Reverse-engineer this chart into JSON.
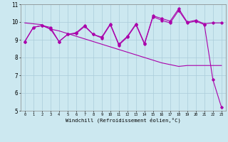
{
  "x": [
    0,
    1,
    2,
    3,
    4,
    5,
    6,
    7,
    8,
    9,
    10,
    11,
    12,
    13,
    14,
    15,
    16,
    17,
    18,
    19,
    20,
    21,
    22,
    23
  ],
  "temp": [
    8.9,
    9.7,
    9.8,
    9.7,
    8.9,
    9.3,
    9.4,
    9.8,
    9.3,
    9.15,
    9.9,
    8.75,
    9.2,
    9.9,
    8.8,
    10.35,
    10.2,
    10.05,
    10.75,
    10.0,
    10.1,
    9.9,
    9.95,
    9.95
  ],
  "windchill": [
    8.9,
    9.7,
    9.8,
    9.6,
    8.9,
    9.3,
    9.35,
    9.75,
    9.3,
    9.1,
    9.85,
    8.7,
    9.15,
    9.85,
    8.75,
    10.3,
    10.1,
    9.95,
    10.65,
    9.95,
    10.05,
    9.85,
    6.75,
    5.2
  ],
  "trend": [
    9.95,
    9.9,
    9.85,
    9.6,
    9.5,
    9.35,
    9.2,
    9.05,
    8.9,
    8.75,
    8.6,
    8.45,
    8.3,
    8.15,
    8.0,
    7.85,
    7.7,
    7.6,
    7.5,
    7.55,
    7.55,
    7.55,
    7.55,
    7.55
  ],
  "bgcolor": "#cce8f0",
  "grid_color": "#aaccda",
  "line_color": "#aa00aa",
  "xlim": [
    -0.5,
    23.5
  ],
  "ylim": [
    5,
    11
  ],
  "yticks": [
    5,
    6,
    7,
    8,
    9,
    10,
    11
  ],
  "xlabel": "Windchill (Refroidissement éolien,°C)"
}
